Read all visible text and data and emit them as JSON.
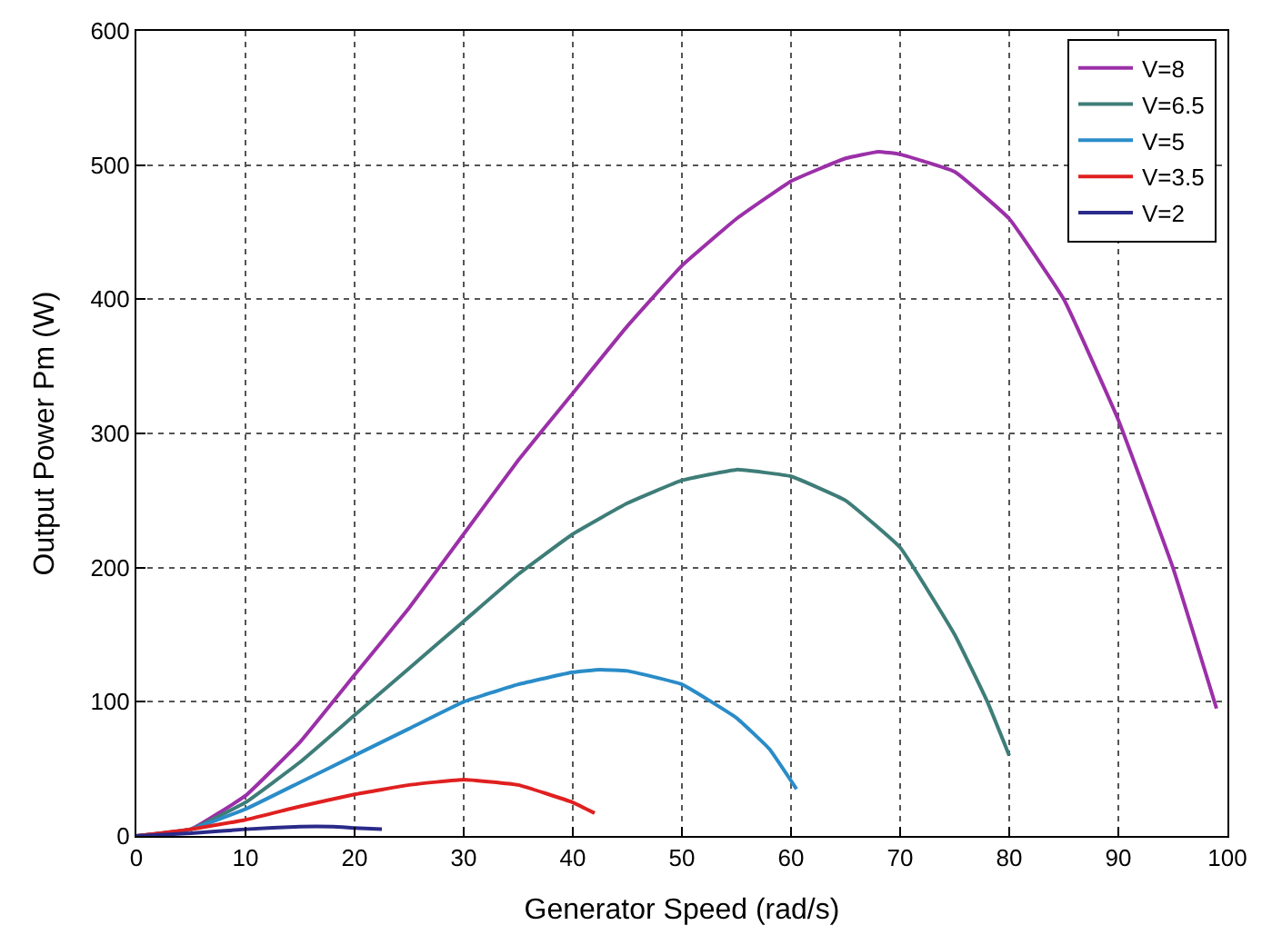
{
  "chart_data": {
    "type": "line",
    "xlabel": "Generator Speed (rad/s)",
    "ylabel": "Output Power Pm (W)",
    "xlim": [
      0,
      100
    ],
    "ylim": [
      0,
      600
    ],
    "xticks": [
      0,
      10,
      20,
      30,
      40,
      50,
      60,
      70,
      80,
      90,
      100
    ],
    "yticks": [
      0,
      100,
      200,
      300,
      400,
      500,
      600
    ],
    "grid": true,
    "legend": "top right",
    "line_style": "solid",
    "marker": "none",
    "series": [
      {
        "name": "V=8",
        "color": "#9b30a8",
        "x": [
          0,
          5,
          10,
          15,
          20,
          25,
          30,
          35,
          40,
          45,
          50,
          55,
          60,
          65,
          68,
          70,
          75,
          80,
          85,
          90,
          95,
          99
        ],
        "values": [
          0,
          5,
          30,
          70,
          120,
          170,
          225,
          280,
          330,
          380,
          425,
          460,
          488,
          505,
          510,
          508,
          495,
          460,
          400,
          310,
          200,
          95
        ]
      },
      {
        "name": "V=6.5",
        "color": "#3e7d78",
        "x": [
          0,
          5,
          10,
          15,
          20,
          25,
          30,
          35,
          40,
          45,
          50,
          55,
          60,
          65,
          70,
          75,
          78,
          80
        ],
        "values": [
          0,
          5,
          25,
          55,
          90,
          125,
          160,
          195,
          225,
          248,
          265,
          273,
          268,
          250,
          215,
          150,
          100,
          60
        ]
      },
      {
        "name": "V=5",
        "color": "#2a8cc8",
        "x": [
          0,
          5,
          10,
          15,
          20,
          25,
          30,
          35,
          40,
          42.5,
          45,
          50,
          55,
          58,
          60.5
        ],
        "values": [
          0,
          5,
          20,
          40,
          60,
          80,
          100,
          113,
          122,
          124,
          123,
          113,
          88,
          65,
          35
        ]
      },
      {
        "name": "V=3.5",
        "color": "#e02020",
        "x": [
          0,
          5,
          10,
          15,
          20,
          25,
          30,
          35,
          40,
          42
        ],
        "values": [
          0,
          5,
          12,
          22,
          31,
          38,
          42,
          38,
          25,
          17
        ]
      },
      {
        "name": "V=2",
        "color": "#2a2a8a",
        "x": [
          0,
          5,
          10,
          15,
          18,
          20,
          22.5
        ],
        "values": [
          0,
          2,
          5,
          7,
          7,
          6,
          5
        ]
      }
    ]
  }
}
